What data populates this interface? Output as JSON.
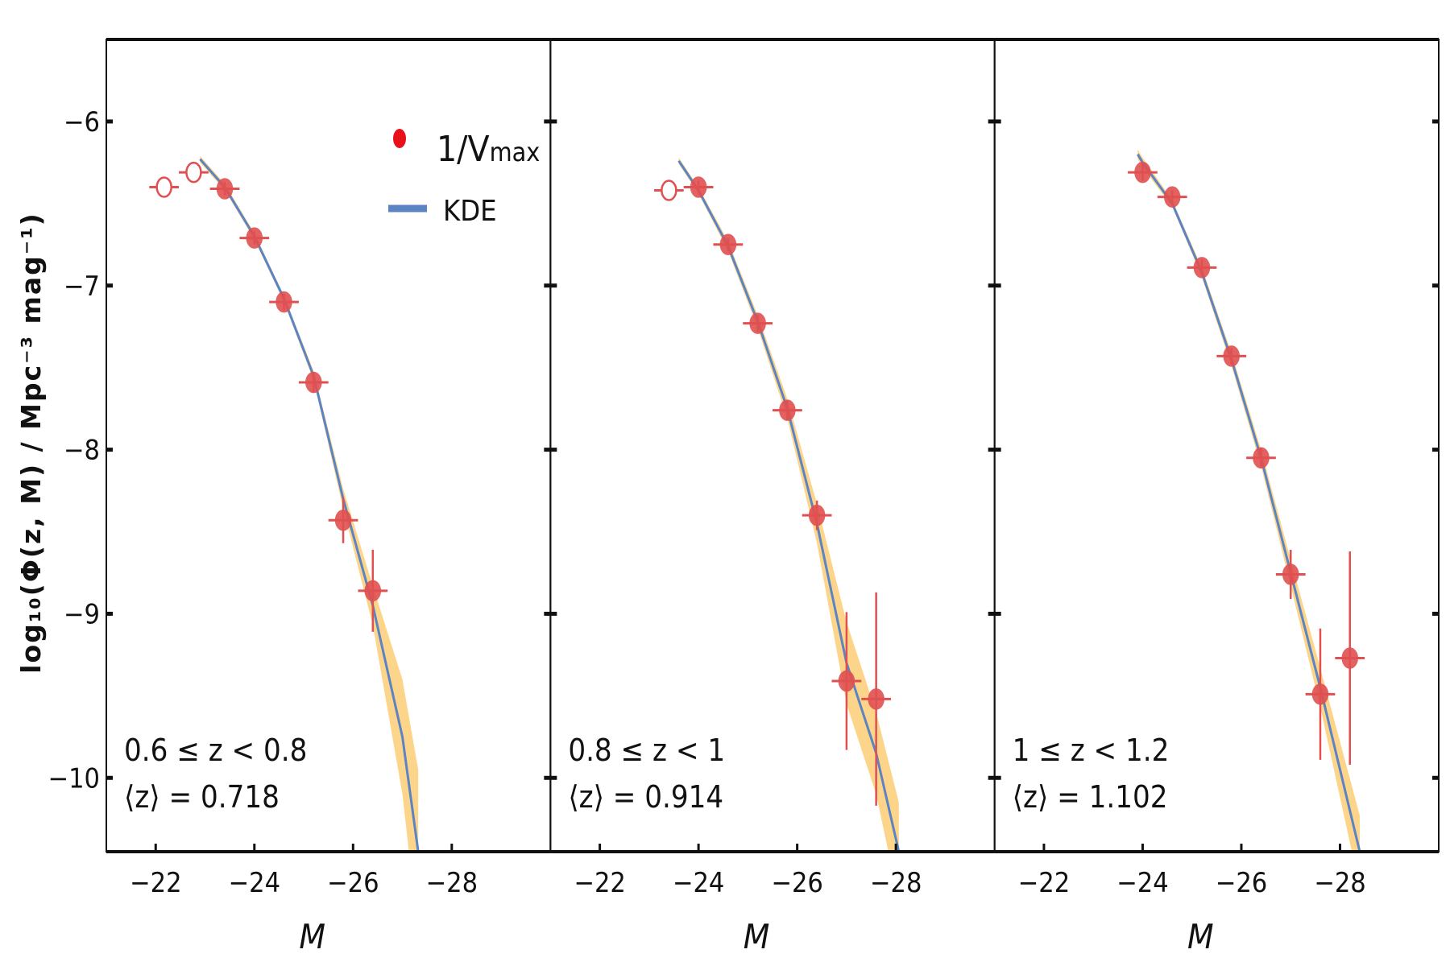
{
  "chart_data": {
    "type": "scatter",
    "ylabel": "log₁₀(Φ(z, M) / Mpc⁻³ mag⁻¹)",
    "xlabel": "M",
    "xlim": [
      -21,
      -30
    ],
    "ylim": [
      -10.45,
      -5.5
    ],
    "xticks": [
      -22,
      -24,
      -26,
      -28
    ],
    "xtick_labels": [
      "−22",
      "−24",
      "−26",
      "−28"
    ],
    "yticks": [
      -6,
      -7,
      -8,
      -9,
      -10
    ],
    "ytick_labels": [
      "−6",
      "−7",
      "−8",
      "−9",
      "−10"
    ],
    "grid": false,
    "legend": {
      "placement": "top-right of first panel",
      "entries": [
        {
          "label": "1/V",
          "sub": "max",
          "marker": "point",
          "color": "#e8111b"
        },
        {
          "label": "KDE",
          "marker": "line",
          "color": "#5b84c4"
        }
      ]
    },
    "colors": {
      "points": "#e05050",
      "kde_line": "#5b84c4",
      "kde_band": "#fdd58a"
    },
    "panels": [
      {
        "label_range": "0.6 ≤ z < 0.8",
        "label_mean": "⟨z⟩ = 0.718",
        "open_points": [
          {
            "M": -22.17,
            "y": -6.4,
            "yerr": 0.03
          },
          {
            "M": -22.77,
            "y": -6.31,
            "yerr": 0.03
          }
        ],
        "points": [
          {
            "M": -23.4,
            "y": -6.41,
            "yerr": 0.04
          },
          {
            "M": -24.0,
            "y": -6.71,
            "yerr": 0.04
          },
          {
            "M": -24.6,
            "y": -7.1,
            "yerr": 0.05
          },
          {
            "M": -25.2,
            "y": -7.59,
            "yerr": 0.06
          },
          {
            "M": -25.8,
            "y": -8.43,
            "yerr": 0.14
          },
          {
            "M": -26.4,
            "y": -8.86,
            "yerr": 0.25
          }
        ],
        "kde": [
          {
            "M": -22.9,
            "y": -6.23,
            "w": 0.02
          },
          {
            "M": -23.4,
            "y": -6.4,
            "w": 0.02
          },
          {
            "M": -24.0,
            "y": -6.7,
            "w": 0.02
          },
          {
            "M": -24.6,
            "y": -7.08,
            "w": 0.02
          },
          {
            "M": -25.2,
            "y": -7.55,
            "w": 0.03
          },
          {
            "M": -25.8,
            "y": -8.3,
            "w": 0.06
          },
          {
            "M": -26.4,
            "y": -8.95,
            "w": 0.12
          },
          {
            "M": -27.0,
            "y": -9.75,
            "w": 0.35
          },
          {
            "M": -27.32,
            "y": -10.45,
            "w": 0.5
          }
        ]
      },
      {
        "label_range": "0.8 ≤ z < 1",
        "label_mean": "⟨z⟩ = 0.914",
        "open_points": [
          {
            "M": -23.4,
            "y": -6.42,
            "yerr": 0.03
          }
        ],
        "points": [
          {
            "M": -24.0,
            "y": -6.4,
            "yerr": 0.04
          },
          {
            "M": -24.6,
            "y": -6.75,
            "yerr": 0.04
          },
          {
            "M": -25.2,
            "y": -7.23,
            "yerr": 0.05
          },
          {
            "M": -25.8,
            "y": -7.76,
            "yerr": 0.06
          },
          {
            "M": -26.4,
            "y": -8.4,
            "yerr": 0.09
          },
          {
            "M": -27.0,
            "y": -9.41,
            "yerr": 0.42
          },
          {
            "M": -27.6,
            "y": -9.52,
            "yerr": 0.65
          }
        ],
        "kde": [
          {
            "M": -23.6,
            "y": -6.24,
            "w": 0.02
          },
          {
            "M": -24.0,
            "y": -6.42,
            "w": 0.02
          },
          {
            "M": -24.6,
            "y": -6.76,
            "w": 0.03
          },
          {
            "M": -25.2,
            "y": -7.22,
            "w": 0.04
          },
          {
            "M": -25.8,
            "y": -7.75,
            "w": 0.06
          },
          {
            "M": -26.4,
            "y": -8.45,
            "w": 0.12
          },
          {
            "M": -27.0,
            "y": -9.3,
            "w": 0.25
          },
          {
            "M": -27.6,
            "y": -9.85,
            "w": 0.25
          },
          {
            "M": -28.06,
            "y": -10.45,
            "w": 0.3
          }
        ]
      },
      {
        "label_range": "1 ≤ z < 1.2",
        "label_mean": "⟨z⟩ = 1.102",
        "open_points": [],
        "points": [
          {
            "M": -24.0,
            "y": -6.31,
            "yerr": 0.05
          },
          {
            "M": -24.6,
            "y": -6.46,
            "yerr": 0.04
          },
          {
            "M": -25.2,
            "y": -6.89,
            "yerr": 0.05
          },
          {
            "M": -25.8,
            "y": -7.43,
            "yerr": 0.05
          },
          {
            "M": -26.4,
            "y": -8.05,
            "yerr": 0.06
          },
          {
            "M": -27.0,
            "y": -8.76,
            "yerr": 0.15
          },
          {
            "M": -27.6,
            "y": -9.49,
            "yerr": 0.4
          },
          {
            "M": -28.2,
            "y": -9.27,
            "yerr": 0.65
          }
        ],
        "kde": [
          {
            "M": -23.9,
            "y": -6.2,
            "w": 0.03
          },
          {
            "M": -24.0,
            "y": -6.25,
            "w": 0.03
          },
          {
            "M": -24.6,
            "y": -6.5,
            "w": 0.02
          },
          {
            "M": -25.2,
            "y": -6.92,
            "w": 0.03
          },
          {
            "M": -25.8,
            "y": -7.45,
            "w": 0.04
          },
          {
            "M": -26.4,
            "y": -8.05,
            "w": 0.05
          },
          {
            "M": -27.0,
            "y": -8.75,
            "w": 0.08
          },
          {
            "M": -27.6,
            "y": -9.45,
            "w": 0.12
          },
          {
            "M": -28.4,
            "y": -10.45,
            "w": 0.22
          }
        ]
      }
    ]
  }
}
